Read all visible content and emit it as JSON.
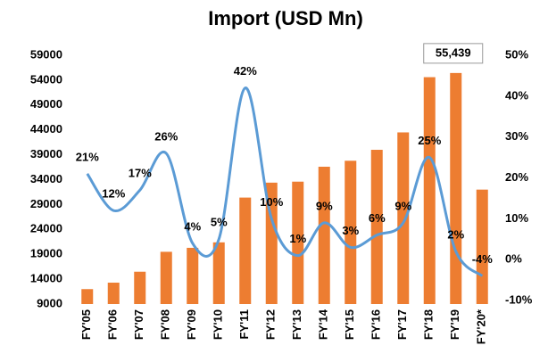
{
  "chart_data": {
    "type": "bar_line",
    "title": "Import (USD Mn)",
    "categories": [
      "FY'05",
      "FY'06",
      "FY'07",
      "FY'08",
      "FY'09",
      "FY'10",
      "FY'11",
      "FY'12",
      "FY'13",
      "FY'14",
      "FY'15",
      "FY'16",
      "FY'17",
      "FY'18",
      "FY'19",
      "FY'20*"
    ],
    "series": [
      {
        "type": "bar",
        "color": "#ed7d31",
        "axis": "y",
        "values": [
          12000,
          13300,
          15500,
          19500,
          20300,
          21400,
          30400,
          33400,
          33600,
          36600,
          37800,
          40000,
          43500,
          54600,
          55439,
          32000
        ],
        "value_labels": [
          null,
          null,
          null,
          null,
          null,
          null,
          null,
          null,
          null,
          null,
          null,
          null,
          null,
          null,
          "55,439",
          null
        ]
      },
      {
        "type": "line",
        "color": "#5b9bd5",
        "axis": "y2",
        "values": [
          21,
          12,
          17,
          26,
          4,
          5,
          42,
          10,
          1,
          9,
          3,
          6,
          9,
          25,
          2,
          -4
        ],
        "value_labels": [
          "21%",
          "12%",
          "17%",
          "26%",
          "4%",
          "5%",
          "42%",
          "10%",
          "1%",
          "9%",
          "3%",
          "6%",
          "9%",
          "25%",
          "2%",
          "-4%"
        ]
      }
    ],
    "ylim": [
      9000,
      59000
    ],
    "yticks": [
      9000,
      14000,
      19000,
      24000,
      29000,
      34000,
      39000,
      44000,
      49000,
      54000,
      59000
    ],
    "y2lim": [
      -10,
      50
    ],
    "y2ticks": [
      {
        "value": -10,
        "label": "-10%"
      },
      {
        "value": 0,
        "label": "0%"
      },
      {
        "value": 10,
        "label": "10%"
      },
      {
        "value": 20,
        "label": "20%"
      },
      {
        "value": 30,
        "label": "30%"
      },
      {
        "value": 40,
        "label": "40%"
      },
      {
        "value": 50,
        "label": "50%"
      }
    ]
  }
}
